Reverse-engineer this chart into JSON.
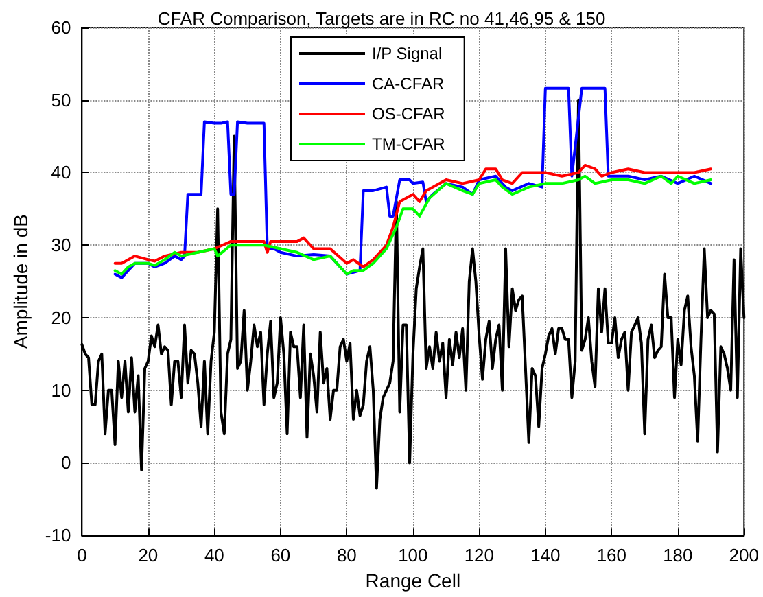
{
  "chart_data": {
    "type": "line",
    "title": "CFAR Comparison, Targets are in RC no 41,46,95 & 150",
    "xlabel": "Range Cell",
    "ylabel": "Amplitude in dB",
    "xlim": [
      0,
      200
    ],
    "xticks": [
      0,
      20,
      40,
      60,
      80,
      100,
      120,
      140,
      160,
      180,
      200
    ],
    "ylim": [
      -10,
      60
    ],
    "yticks": [
      -10,
      0,
      10,
      20,
      30,
      40,
      50,
      60
    ],
    "grid": true,
    "legend": "top",
    "marker": "none",
    "line_style": "solid",
    "series": [
      {
        "name": "I/P Signal",
        "color": "#000000",
        "x": [
          0,
          1,
          2,
          3,
          4,
          5,
          6,
          7,
          8,
          9,
          10,
          11,
          12,
          13,
          14,
          15,
          16,
          17,
          18,
          19,
          20,
          21,
          22,
          23,
          24,
          25,
          26,
          27,
          28,
          29,
          30,
          31,
          32,
          33,
          34,
          35,
          36,
          37,
          38,
          39,
          40,
          41,
          42,
          43,
          44,
          45,
          46,
          47,
          48,
          49,
          50,
          51,
          52,
          53,
          54,
          55,
          56,
          57,
          58,
          59,
          60,
          61,
          62,
          63,
          64,
          65,
          66,
          67,
          68,
          69,
          70,
          71,
          72,
          73,
          74,
          75,
          76,
          77,
          78,
          79,
          80,
          81,
          82,
          83,
          84,
          85,
          86,
          87,
          88,
          89,
          90,
          91,
          92,
          93,
          94,
          95,
          96,
          97,
          98,
          99,
          100,
          101,
          102,
          103,
          104,
          105,
          106,
          107,
          108,
          109,
          110,
          111,
          112,
          113,
          114,
          115,
          116,
          117,
          118,
          119,
          120,
          121,
          122,
          123,
          124,
          125,
          126,
          127,
          128,
          129,
          130,
          131,
          132,
          133,
          134,
          135,
          136,
          137,
          138,
          139,
          140,
          141,
          142,
          143,
          144,
          145,
          146,
          147,
          148,
          149,
          150,
          151,
          152,
          153,
          154,
          155,
          156,
          157,
          158,
          159,
          160,
          161,
          162,
          163,
          164,
          165,
          166,
          167,
          168,
          169,
          170,
          171,
          172,
          173,
          174,
          175,
          176,
          177,
          178,
          179,
          180,
          181,
          182,
          183,
          184,
          185,
          186,
          187,
          188,
          189,
          190,
          191,
          192,
          193,
          194,
          195,
          196,
          197,
          198,
          199,
          200
        ],
        "values": [
          16.3,
          15,
          14.5,
          8,
          8,
          14,
          15,
          4,
          10,
          10,
          2.5,
          14,
          9,
          14,
          7,
          14.5,
          7,
          12,
          -1,
          13,
          14,
          17.5,
          16,
          19,
          15,
          16,
          15.5,
          8,
          14,
          14,
          9,
          19,
          11,
          15.5,
          15,
          11,
          5,
          14,
          4,
          14,
          18,
          35,
          7,
          4,
          15,
          17,
          45,
          13,
          14,
          21,
          10,
          14,
          19,
          16,
          18,
          8,
          15,
          19.5,
          9,
          11,
          20,
          15,
          4,
          18,
          16,
          16,
          9,
          19,
          3.5,
          15,
          12,
          7,
          18,
          11,
          13,
          6,
          10,
          10,
          16,
          17,
          14,
          16.5,
          6,
          10,
          6.5,
          8,
          14,
          16,
          10,
          -3.5,
          6,
          9,
          10,
          11,
          14,
          36,
          7,
          19,
          19,
          0,
          15,
          24,
          27,
          29.5,
          13,
          16,
          13,
          18,
          14,
          16.5,
          9,
          17,
          13.5,
          18,
          14.5,
          18.5,
          10,
          25,
          29.5,
          25,
          17.5,
          11.5,
          17,
          19.5,
          13,
          17,
          19,
          10,
          29.5,
          16,
          24,
          21,
          22.5,
          23,
          13,
          2.8,
          13,
          12,
          5,
          13,
          15,
          17.5,
          18.5,
          15,
          18.5,
          18.5,
          17,
          17,
          9,
          14,
          50,
          15.5,
          17,
          20,
          14,
          10.5,
          24,
          18,
          24,
          16.5,
          16.5,
          20,
          14.5,
          17,
          18,
          10,
          18,
          19,
          20,
          16.5,
          4,
          17,
          19,
          14.5,
          15.5,
          16,
          26,
          20,
          20,
          9,
          17,
          13.5,
          21,
          23,
          16,
          12,
          3,
          17,
          29.5,
          20,
          21,
          20.5,
          1.5,
          16,
          15,
          13,
          10,
          28,
          9,
          29.5,
          20
        ]
      },
      {
        "name": "CA-CFAR",
        "color": "#0000ff",
        "x": [
          10,
          12,
          14,
          16,
          20,
          22,
          25,
          28,
          30,
          31,
          32,
          36,
          37,
          40,
          42,
          44,
          45,
          46,
          47,
          50,
          55,
          56,
          58,
          60,
          65,
          70,
          75,
          80,
          84,
          85,
          88,
          92,
          93,
          94,
          96,
          99,
          100,
          103,
          104,
          106,
          110,
          115,
          118,
          120,
          125,
          128,
          130,
          135,
          139,
          140,
          147,
          148,
          151,
          158,
          159,
          165,
          170,
          175,
          180,
          185,
          190
        ],
        "values": [
          26,
          25.5,
          26.5,
          27.5,
          27.5,
          27,
          27.5,
          28.5,
          28,
          28.5,
          37,
          37,
          47,
          46.8,
          46.8,
          47,
          37,
          37,
          47,
          46.8,
          46.8,
          29.5,
          29.5,
          29,
          28.5,
          28.7,
          28.5,
          26,
          26.5,
          37.5,
          37.5,
          38,
          34,
          34,
          39,
          39,
          38.5,
          38.7,
          36,
          37,
          38.5,
          38,
          37,
          39,
          39.5,
          38,
          37.5,
          38.5,
          38,
          51.6,
          51.6,
          39.5,
          51.6,
          51.6,
          39.5,
          39.5,
          39,
          39.5,
          38.5,
          39.5,
          38.5
        ]
      },
      {
        "name": "OS-CFAR",
        "color": "#ff0000",
        "x": [
          10,
          12,
          16,
          20,
          22,
          25,
          30,
          35,
          40,
          45,
          50,
          55,
          56,
          57,
          60,
          65,
          67,
          70,
          75,
          80,
          82,
          85,
          88,
          92,
          94,
          96,
          100,
          102,
          104,
          110,
          115,
          120,
          122,
          125,
          127,
          130,
          133,
          140,
          145,
          150,
          152,
          155,
          157,
          160,
          165,
          170,
          175,
          180,
          185,
          190
        ],
        "values": [
          27.5,
          27.5,
          28.5,
          28,
          27.8,
          28.5,
          29,
          29,
          29.5,
          30.5,
          30.5,
          30.5,
          29,
          30.5,
          30.5,
          30.5,
          31,
          29.5,
          29.5,
          27.5,
          28,
          27,
          28,
          30,
          32.5,
          36,
          37,
          36,
          37.5,
          39,
          38.5,
          39,
          40.5,
          40.5,
          39,
          38.5,
          40,
          40,
          39.5,
          40,
          41,
          40.5,
          39.5,
          40,
          40.5,
          40,
          40,
          40,
          40,
          40.5
        ]
      },
      {
        "name": "TM-CFAR",
        "color": "#00ff00",
        "x": [
          10,
          12,
          14,
          16,
          20,
          22,
          25,
          28,
          30,
          35,
          40,
          41,
          45,
          50,
          55,
          60,
          65,
          70,
          75,
          80,
          82,
          85,
          88,
          92,
          95,
          97,
          100,
          102,
          105,
          110,
          115,
          118,
          120,
          125,
          127,
          130,
          135,
          140,
          145,
          150,
          152,
          155,
          160,
          165,
          170,
          175,
          178,
          180,
          185,
          190
        ],
        "values": [
          26.5,
          26,
          27,
          27.5,
          27.5,
          27.2,
          28,
          29,
          28.5,
          29,
          29.5,
          28.5,
          30,
          30,
          30,
          29.5,
          29,
          28,
          28.5,
          26,
          26.5,
          26.5,
          27.5,
          29.5,
          32.5,
          35,
          35,
          34,
          36.5,
          38.5,
          37.5,
          37,
          38.5,
          39,
          38,
          37,
          38,
          38.5,
          38.5,
          39,
          39.5,
          38.5,
          39,
          39,
          38.5,
          39.5,
          38.5,
          39.5,
          38.5,
          39
        ]
      }
    ]
  }
}
